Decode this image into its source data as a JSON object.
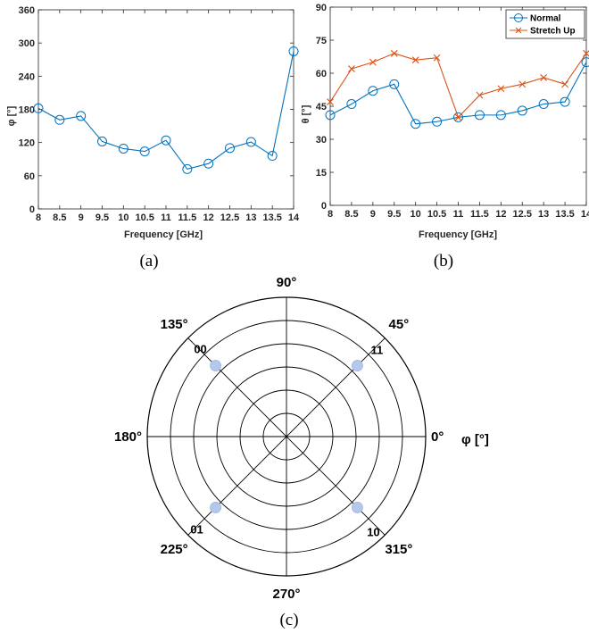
{
  "chart_data": [
    {
      "type": "line",
      "caption": "(a)",
      "xlabel": "Frequency [GHz]",
      "ylabel": "φ [°]",
      "xlim": [
        8,
        14
      ],
      "ylim": [
        0,
        360
      ],
      "xticks": [
        "8",
        "8.5",
        "9",
        "9.5",
        "10",
        "10.5",
        "11",
        "11.5",
        "12",
        "12.5",
        "13",
        "13.5",
        "14"
      ],
      "yticks": [
        "0",
        "60",
        "120",
        "180",
        "240",
        "300",
        "360"
      ],
      "x": [
        8,
        8.5,
        9,
        9.5,
        10,
        10.5,
        11,
        11.5,
        12,
        12.5,
        13,
        13.5,
        14
      ],
      "series": [
        {
          "color": "#0072BD",
          "marker": "circle",
          "values": [
            182,
            161,
            168,
            122,
            109,
            104,
            124,
            72,
            82,
            110,
            121,
            96,
            285
          ]
        }
      ],
      "grid": false,
      "legend": "none"
    },
    {
      "type": "line",
      "caption": "(b)",
      "xlabel": "Frequency [GHz]",
      "ylabel": "θ [°]",
      "xlim": [
        8,
        14
      ],
      "ylim": [
        0,
        90
      ],
      "xticks": [
        "8",
        "8.5",
        "9",
        "9.5",
        "10",
        "10.5",
        "11",
        "11.5",
        "12",
        "12.5",
        "13",
        "13.5",
        "14"
      ],
      "yticks": [
        "0",
        "15",
        "30",
        "45",
        "60",
        "75",
        "90"
      ],
      "x": [
        8,
        8.5,
        9,
        9.5,
        10,
        10.5,
        11,
        11.5,
        12,
        12.5,
        13,
        13.5,
        14
      ],
      "series": [
        {
          "name": "Normal",
          "color": "#0072BD",
          "marker": "circle",
          "values": [
            41,
            46,
            52,
            55,
            37,
            38,
            40,
            41,
            41,
            43,
            46,
            47,
            65
          ]
        },
        {
          "name": "Stretch Up",
          "color": "#D95319",
          "marker": "x",
          "values": [
            47,
            62,
            65,
            69,
            66,
            67,
            40,
            50,
            53,
            55,
            58,
            55,
            69
          ]
        }
      ],
      "grid": false,
      "legend": "top-right"
    },
    {
      "type": "scatter",
      "subtype": "polar",
      "caption": "(c)",
      "angle_labels": [
        {
          "deg": 0,
          "text": "0°"
        },
        {
          "deg": 45,
          "text": "45°"
        },
        {
          "deg": 90,
          "text": "90°"
        },
        {
          "deg": 135,
          "text": "135°"
        },
        {
          "deg": 180,
          "text": "180°"
        },
        {
          "deg": 225,
          "text": "225°"
        },
        {
          "deg": 270,
          "text": "270°"
        },
        {
          "deg": 315,
          "text": "315°"
        }
      ],
      "axis_label": "φ [°]",
      "rings": 6,
      "points": [
        {
          "label": "00",
          "angle": 135,
          "r": 0.72,
          "color": "#B4C8EC"
        },
        {
          "label": "11",
          "angle": 45,
          "r": 0.72,
          "color": "#B4C8EC"
        },
        {
          "label": "01",
          "angle": 225,
          "r": 0.72,
          "color": "#B4C8EC"
        },
        {
          "label": "10",
          "angle": 315,
          "r": 0.72,
          "color": "#B4C8EC"
        }
      ]
    }
  ]
}
